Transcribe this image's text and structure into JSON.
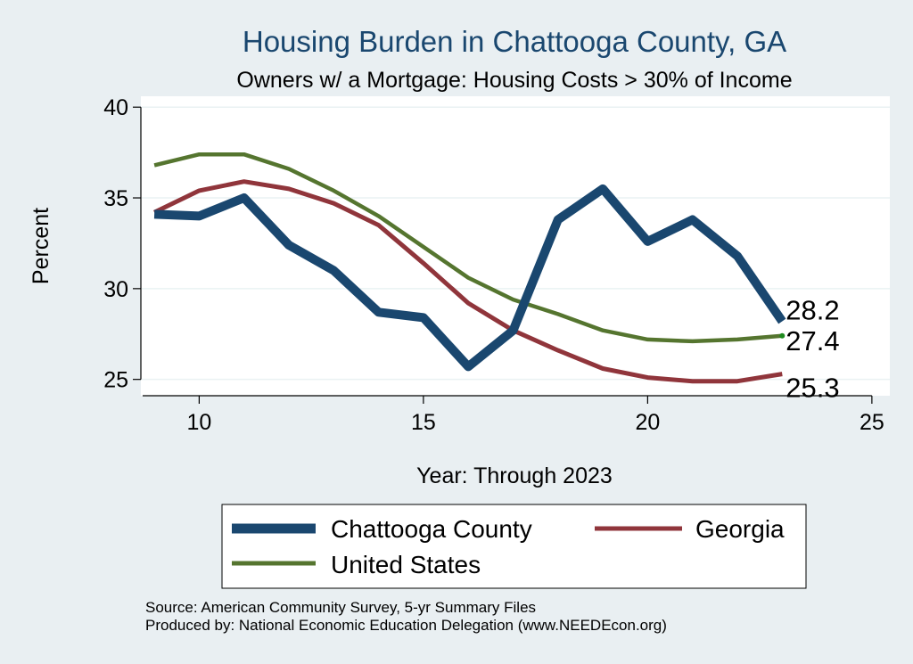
{
  "chart_data": {
    "type": "line",
    "title": "Housing Burden in Chattooga County, GA",
    "subtitle": "Owners w/ a Mortgage: Housing Costs > 30% of Income",
    "xlabel": "Year: Through 2023",
    "ylabel": "Percent",
    "xlim": [
      8.7,
      25.4
    ],
    "ylim": [
      24.1,
      40.6
    ],
    "xticks": [
      10,
      15,
      20,
      25
    ],
    "yticks": [
      25,
      30,
      35,
      40
    ],
    "grid": true,
    "x": [
      9,
      10,
      11,
      12,
      13,
      14,
      15,
      16,
      17,
      18,
      19,
      20,
      21,
      22,
      23
    ],
    "series": [
      {
        "name": "Chattooga County",
        "color": "#1a476f",
        "values": [
          34.1,
          34.0,
          35.0,
          32.4,
          31.0,
          28.7,
          28.4,
          25.7,
          27.7,
          33.8,
          35.5,
          32.6,
          33.8,
          31.8,
          28.2
        ],
        "end_label": "28.2"
      },
      {
        "name": "Georgia",
        "color": "#90353b",
        "values": [
          34.2,
          35.4,
          35.9,
          35.5,
          34.7,
          33.5,
          31.4,
          29.2,
          27.7,
          26.6,
          25.6,
          25.1,
          24.9,
          24.9,
          25.3
        ],
        "end_label": "25.3"
      },
      {
        "name": "United States",
        "color": "#55752f",
        "values": [
          36.8,
          37.4,
          37.4,
          36.6,
          35.4,
          34.0,
          32.3,
          30.6,
          29.4,
          28.6,
          27.7,
          27.2,
          27.1,
          27.2,
          27.4
        ],
        "end_label": "27.4"
      }
    ],
    "legend": {
      "placement": "bottom",
      "entries": [
        "Chattooga County",
        "Georgia",
        "United States"
      ]
    },
    "notes": [
      "Source: American Community Survey, 5-yr Summary Files",
      "Produced by: National Economic Education Delegation (www.NEEDEcon.org)"
    ]
  }
}
